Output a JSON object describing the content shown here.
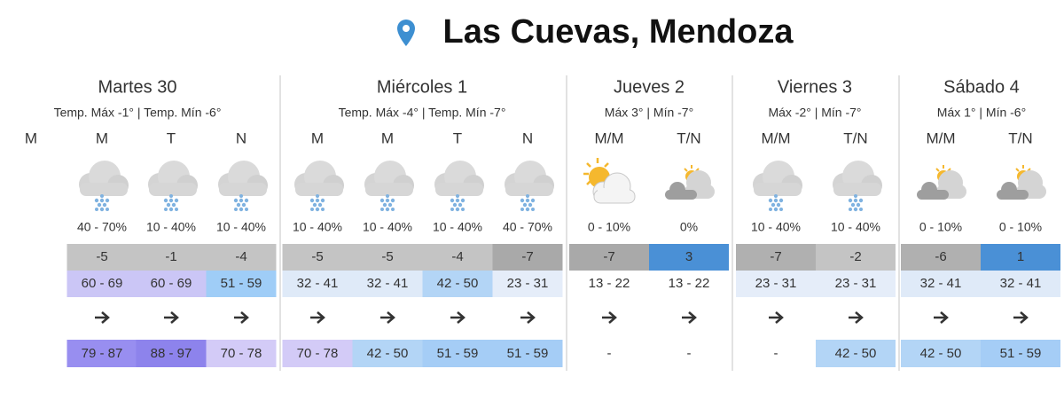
{
  "header": {
    "title": "Las Cuevas, Mendoza"
  },
  "days": [
    {
      "name": "Martes 30",
      "summary": "Temp. Máx -1° | Temp. Mín -6°",
      "periods": [
        {
          "label": "M"
        },
        {
          "label": "M",
          "precip": "40 - 70%",
          "temp": "-5",
          "range1": "60 - 69",
          "range2": "79 - 87"
        },
        {
          "label": "T",
          "precip": "10 - 40%",
          "temp": "-1",
          "range1": "60 - 69",
          "range2": "88 - 97"
        },
        {
          "label": "N",
          "precip": "10 - 40%",
          "temp": "-4",
          "range1": "51 - 59",
          "range2": "70 - 78"
        }
      ]
    },
    {
      "name": "Miércoles 1",
      "summary": "Temp. Máx -4° | Temp. Mín -7°",
      "periods": [
        {
          "label": "M",
          "precip": "10 - 40%",
          "temp": "-5",
          "range1": "32 - 41",
          "range2": "70 - 78"
        },
        {
          "label": "M",
          "precip": "10 - 40%",
          "temp": "-5",
          "range1": "32 - 41",
          "range2": "42 - 50"
        },
        {
          "label": "T",
          "precip": "10 - 40%",
          "temp": "-4",
          "range1": "42 - 50",
          "range2": "51 - 59"
        },
        {
          "label": "N",
          "precip": "40 - 70%",
          "temp": "-7",
          "range1": "23 - 31",
          "range2": "51 - 59"
        }
      ]
    },
    {
      "name": "Jueves 2",
      "summary": "Máx 3° | Mín -7°",
      "periods": [
        {
          "label": "M/M",
          "precip": "0 - 10%",
          "temp": "-7",
          "range1": "13 - 22",
          "range2": "-"
        },
        {
          "label": "T/N",
          "precip": "0%",
          "temp": "3",
          "range1": "13 - 22",
          "range2": "-"
        }
      ]
    },
    {
      "name": "Viernes 3",
      "summary": "Máx -2° | Mín -7°",
      "periods": [
        {
          "label": "M/M",
          "precip": "10 - 40%",
          "temp": "-7",
          "range1": "23 - 31",
          "range2": "-"
        },
        {
          "label": "T/N",
          "precip": "10 - 40%",
          "temp": "-2",
          "range1": "23 - 31",
          "range2": "42 - 50"
        }
      ]
    },
    {
      "name": "Sábado 4",
      "summary": "Máx 1° | Mín -6°",
      "periods": [
        {
          "label": "M/M",
          "precip": "0 - 10%",
          "temp": "-6",
          "range1": "32 - 41",
          "range2": "42 - 50"
        },
        {
          "label": "T/N",
          "precip": "0 - 10%",
          "temp": "1",
          "range1": "32 - 41",
          "range2": "51 - 59"
        }
      ]
    }
  ]
}
